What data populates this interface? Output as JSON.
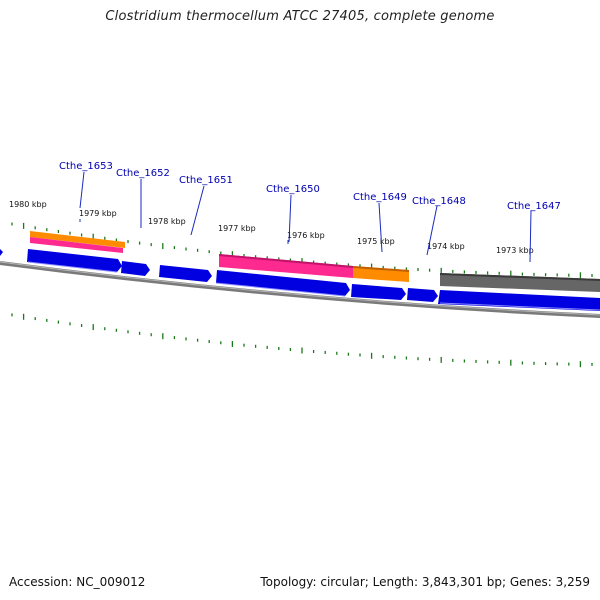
{
  "title": "Clostridium thermocellum ATCC 27405, complete genome",
  "footer": {
    "accession": "Accession: NC_009012",
    "summary": "Topology: circular; Length: 3,843,301 bp; Genes: 3,259"
  },
  "colors": {
    "forward_gene": "#0000e0",
    "forward_gene_light": "#7070ff",
    "cds_pink": "#ff2a8f",
    "cds_orange": "#ff8c00",
    "cds_gray": "#666666",
    "backbone": "#777777",
    "tick": "#1a7a1a",
    "gene_label": "#0000b0"
  },
  "kbp_labels": [
    "1980 kbp",
    "1979 kbp",
    "1978 kbp",
    "1977 kbp",
    "1976 kbp",
    "1975 kbp",
    "1974 kbp",
    "1973 kbp"
  ],
  "genes": [
    {
      "label": "Cthe_1653"
    },
    {
      "label": "Cthe_1652"
    },
    {
      "label": "Cthe_1651"
    },
    {
      "label": "Cthe_1650"
    },
    {
      "label": "Cthe_1649"
    },
    {
      "label": "Cthe_1648"
    },
    {
      "label": "Cthe_1647"
    }
  ]
}
